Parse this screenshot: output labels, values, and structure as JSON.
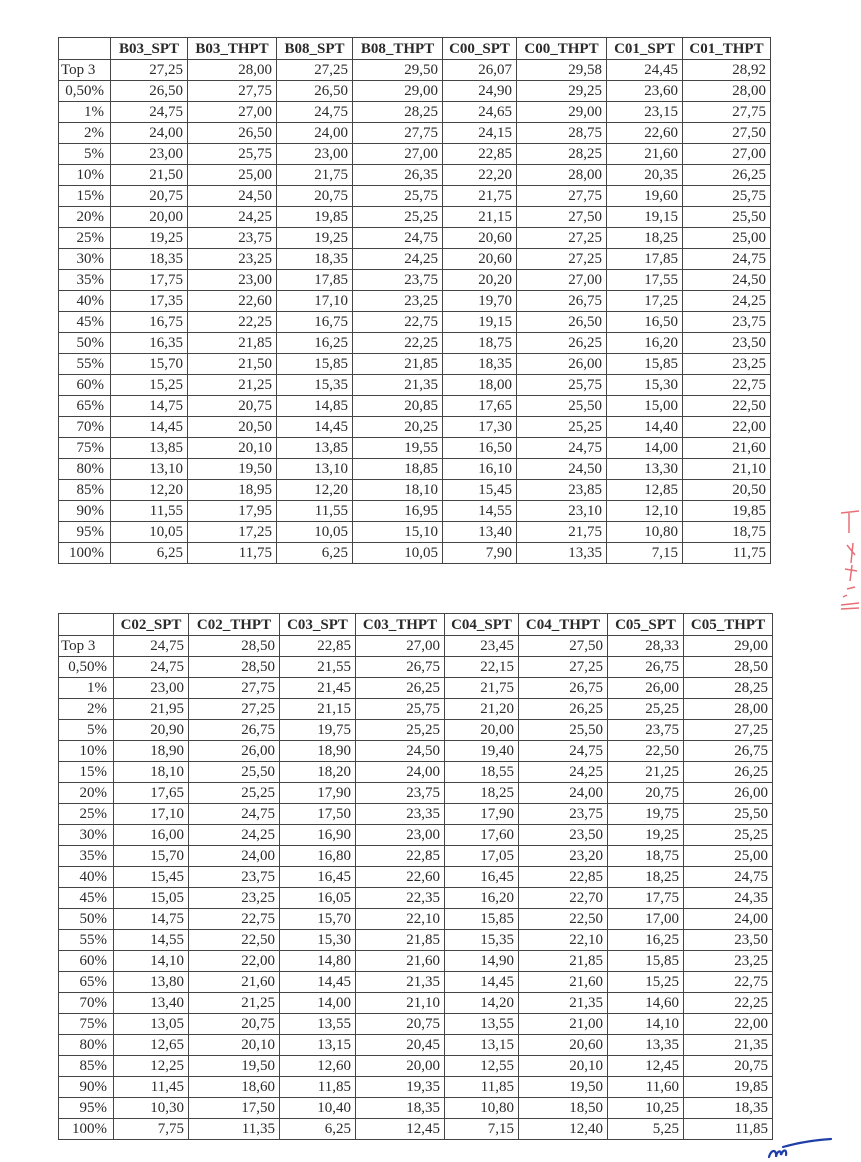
{
  "tables": [
    {
      "columns": [
        "",
        "B03_SPT",
        "B03_THPT",
        "B08_SPT",
        "B08_THPT",
        "C00_SPT",
        "C00_THPT",
        "C01_SPT",
        "C01_THPT"
      ],
      "rows": [
        [
          "Top 3",
          "27,25",
          "28,00",
          "27,25",
          "29,50",
          "26,07",
          "29,58",
          "24,45",
          "28,92"
        ],
        [
          "0,50%",
          "26,50",
          "27,75",
          "26,50",
          "29,00",
          "24,90",
          "29,25",
          "23,60",
          "28,00"
        ],
        [
          "1%",
          "24,75",
          "27,00",
          "24,75",
          "28,25",
          "24,65",
          "29,00",
          "23,15",
          "27,75"
        ],
        [
          "2%",
          "24,00",
          "26,50",
          "24,00",
          "27,75",
          "24,15",
          "28,75",
          "22,60",
          "27,50"
        ],
        [
          "5%",
          "23,00",
          "25,75",
          "23,00",
          "27,00",
          "22,85",
          "28,25",
          "21,60",
          "27,00"
        ],
        [
          "10%",
          "21,50",
          "25,00",
          "21,75",
          "26,35",
          "22,20",
          "28,00",
          "20,35",
          "26,25"
        ],
        [
          "15%",
          "20,75",
          "24,50",
          "20,75",
          "25,75",
          "21,75",
          "27,75",
          "19,60",
          "25,75"
        ],
        [
          "20%",
          "20,00",
          "24,25",
          "19,85",
          "25,25",
          "21,15",
          "27,50",
          "19,15",
          "25,50"
        ],
        [
          "25%",
          "19,25",
          "23,75",
          "19,25",
          "24,75",
          "20,60",
          "27,25",
          "18,25",
          "25,00"
        ],
        [
          "30%",
          "18,35",
          "23,25",
          "18,35",
          "24,25",
          "20,60",
          "27,25",
          "17,85",
          "24,75"
        ],
        [
          "35%",
          "17,75",
          "23,00",
          "17,85",
          "23,75",
          "20,20",
          "27,00",
          "17,55",
          "24,50"
        ],
        [
          "40%",
          "17,35",
          "22,60",
          "17,10",
          "23,25",
          "19,70",
          "26,75",
          "17,25",
          "24,25"
        ],
        [
          "45%",
          "16,75",
          "22,25",
          "16,75",
          "22,75",
          "19,15",
          "26,50",
          "16,50",
          "23,75"
        ],
        [
          "50%",
          "16,35",
          "21,85",
          "16,25",
          "22,25",
          "18,75",
          "26,25",
          "16,20",
          "23,50"
        ],
        [
          "55%",
          "15,70",
          "21,50",
          "15,85",
          "21,85",
          "18,35",
          "26,00",
          "15,85",
          "23,25"
        ],
        [
          "60%",
          "15,25",
          "21,25",
          "15,35",
          "21,35",
          "18,00",
          "25,75",
          "15,30",
          "22,75"
        ],
        [
          "65%",
          "14,75",
          "20,75",
          "14,85",
          "20,85",
          "17,65",
          "25,50",
          "15,00",
          "22,50"
        ],
        [
          "70%",
          "14,45",
          "20,50",
          "14,45",
          "20,25",
          "17,30",
          "25,25",
          "14,40",
          "22,00"
        ],
        [
          "75%",
          "13,85",
          "20,10",
          "13,85",
          "19,55",
          "16,50",
          "24,75",
          "14,00",
          "21,60"
        ],
        [
          "80%",
          "13,10",
          "19,50",
          "13,10",
          "18,85",
          "16,10",
          "24,50",
          "13,30",
          "21,10"
        ],
        [
          "85%",
          "12,20",
          "18,95",
          "12,20",
          "18,10",
          "15,45",
          "23,85",
          "12,85",
          "20,50"
        ],
        [
          "90%",
          "11,55",
          "17,95",
          "11,55",
          "16,95",
          "14,55",
          "23,10",
          "12,10",
          "19,85"
        ],
        [
          "95%",
          "10,05",
          "17,25",
          "10,05",
          "15,10",
          "13,40",
          "21,75",
          "10,80",
          "18,75"
        ],
        [
          "100%",
          "6,25",
          "11,75",
          "6,25",
          "10,05",
          "7,90",
          "13,35",
          "7,15",
          "11,75"
        ]
      ]
    },
    {
      "columns": [
        "",
        "C02_SPT",
        "C02_THPT",
        "C03_SPT",
        "C03_THPT",
        "C04_SPT",
        "C04_THPT",
        "C05_SPT",
        "C05_THPT"
      ],
      "rows": [
        [
          "Top 3",
          "24,75",
          "28,50",
          "22,85",
          "27,00",
          "23,45",
          "27,50",
          "28,33",
          "29,00"
        ],
        [
          "0,50%",
          "24,75",
          "28,50",
          "21,55",
          "26,75",
          "22,15",
          "27,25",
          "26,75",
          "28,50"
        ],
        [
          "1%",
          "23,00",
          "27,75",
          "21,45",
          "26,25",
          "21,75",
          "26,75",
          "26,00",
          "28,25"
        ],
        [
          "2%",
          "21,95",
          "27,25",
          "21,15",
          "25,75",
          "21,20",
          "26,25",
          "25,25",
          "28,00"
        ],
        [
          "5%",
          "20,90",
          "26,75",
          "19,75",
          "25,25",
          "20,00",
          "25,50",
          "23,75",
          "27,25"
        ],
        [
          "10%",
          "18,90",
          "26,00",
          "18,90",
          "24,50",
          "19,40",
          "24,75",
          "22,50",
          "26,75"
        ],
        [
          "15%",
          "18,10",
          "25,50",
          "18,20",
          "24,00",
          "18,55",
          "24,25",
          "21,25",
          "26,25"
        ],
        [
          "20%",
          "17,65",
          "25,25",
          "17,90",
          "23,75",
          "18,25",
          "24,00",
          "20,75",
          "26,00"
        ],
        [
          "25%",
          "17,10",
          "24,75",
          "17,50",
          "23,35",
          "17,90",
          "23,75",
          "19,75",
          "25,50"
        ],
        [
          "30%",
          "16,00",
          "24,25",
          "16,90",
          "23,00",
          "17,60",
          "23,50",
          "19,25",
          "25,25"
        ],
        [
          "35%",
          "15,70",
          "24,00",
          "16,80",
          "22,85",
          "17,05",
          "23,20",
          "18,75",
          "25,00"
        ],
        [
          "40%",
          "15,45",
          "23,75",
          "16,45",
          "22,60",
          "16,45",
          "22,85",
          "18,25",
          "24,75"
        ],
        [
          "45%",
          "15,05",
          "23,25",
          "16,05",
          "22,35",
          "16,20",
          "22,70",
          "17,75",
          "24,35"
        ],
        [
          "50%",
          "14,75",
          "22,75",
          "15,70",
          "22,10",
          "15,85",
          "22,50",
          "17,00",
          "24,00"
        ],
        [
          "55%",
          "14,55",
          "22,50",
          "15,30",
          "21,85",
          "15,35",
          "22,10",
          "16,25",
          "23,50"
        ],
        [
          "60%",
          "14,10",
          "22,00",
          "14,80",
          "21,60",
          "14,90",
          "21,85",
          "15,85",
          "23,25"
        ],
        [
          "65%",
          "13,80",
          "21,60",
          "14,45",
          "21,35",
          "14,45",
          "21,60",
          "15,25",
          "22,75"
        ],
        [
          "70%",
          "13,40",
          "21,25",
          "14,00",
          "21,10",
          "14,20",
          "21,35",
          "14,60",
          "22,25"
        ],
        [
          "75%",
          "13,05",
          "20,75",
          "13,55",
          "20,75",
          "13,55",
          "21,00",
          "14,10",
          "22,00"
        ],
        [
          "80%",
          "12,65",
          "20,10",
          "13,15",
          "20,45",
          "13,15",
          "20,60",
          "13,35",
          "21,35"
        ],
        [
          "85%",
          "12,25",
          "19,50",
          "12,60",
          "20,00",
          "12,55",
          "20,10",
          "12,45",
          "20,75"
        ],
        [
          "90%",
          "11,45",
          "18,60",
          "11,85",
          "19,35",
          "11,85",
          "19,50",
          "11,60",
          "19,85"
        ],
        [
          "95%",
          "10,30",
          "17,50",
          "10,40",
          "18,35",
          "10,80",
          "18,50",
          "10,25",
          "18,35"
        ],
        [
          "100%",
          "7,75",
          "11,35",
          "6,25",
          "12,45",
          "7,15",
          "12,40",
          "5,25",
          "11,85"
        ]
      ]
    }
  ],
  "colors": {
    "ink": "#2a2a2a",
    "signature": "#1f3fa8",
    "red_marks": "#e0404a"
  },
  "icons": [
    "signature-mark",
    "handwritten-red-marks"
  ]
}
